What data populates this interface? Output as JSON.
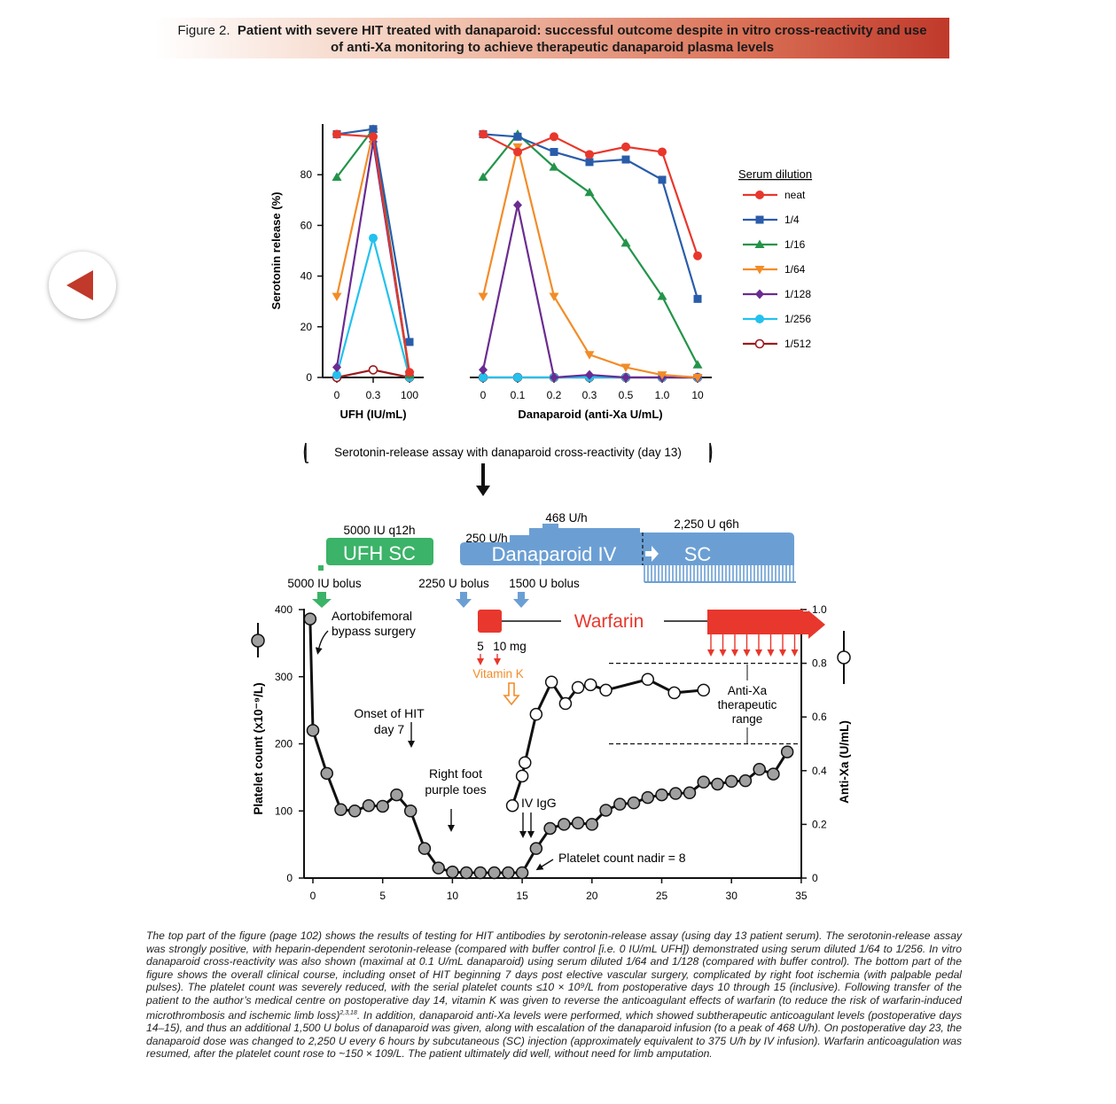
{
  "header": {
    "figure_label": "Figure 2.",
    "title_line1": "Patient with severe HIT treated with danaparoid: successful outcome despite in vitro cross-reactivity and use",
    "title_line2": "of anti-Xa monitoring to achieve therapeutic danaparoid plasma levels"
  },
  "navigation": {
    "back_icon": "left-triangle-icon"
  },
  "colors": {
    "neat": "#e8372c",
    "1/4": "#2a5caa",
    "1/16": "#23944a",
    "1/64": "#f28c28",
    "1/128": "#6a2c91",
    "1/256": "#22c1ee",
    "1/512": "#9b1b1f",
    "ufh": "#3bb368",
    "danaparoid": "#6b9fd4",
    "warfarin": "#e8372c",
    "vitamin_k": "#f28c28",
    "marker_gray": "#a0a0a0"
  },
  "chart_data": [
    {
      "type": "line",
      "ylabel": "Serotonin release (%)",
      "yticks": [
        0,
        20,
        40,
        60,
        80
      ],
      "ylim": [
        0,
        100
      ],
      "legend_title": "Serum dilution",
      "legend_position": "right",
      "panels": [
        {
          "xlabel": "UFH (IU/mL)",
          "categories": [
            "0",
            "0.3",
            "100"
          ]
        },
        {
          "xlabel": "Danaparoid (anti-Xa U/mL)",
          "categories": [
            "0",
            "0.1",
            "0.2",
            "0.3",
            "0.5",
            "1.0",
            "10"
          ]
        }
      ],
      "series": [
        {
          "name": "neat",
          "marker": "circle",
          "ufh": [
            96,
            95,
            2
          ],
          "danaparoid": [
            96,
            89,
            95,
            88,
            91,
            89,
            48
          ]
        },
        {
          "name": "1/4",
          "marker": "square",
          "ufh": [
            96,
            98,
            14
          ],
          "danaparoid": [
            96,
            95,
            89,
            85,
            86,
            78,
            31
          ]
        },
        {
          "name": "1/16",
          "marker": "triangle-up",
          "ufh": [
            79,
            98,
            1
          ],
          "danaparoid": [
            79,
            96,
            83,
            73,
            53,
            32,
            5
          ]
        },
        {
          "name": "1/64",
          "marker": "triangle-down",
          "ufh": [
            32,
            97,
            1
          ],
          "danaparoid": [
            32,
            91,
            32,
            9,
            4,
            1,
            0
          ]
        },
        {
          "name": "1/128",
          "marker": "diamond",
          "ufh": [
            4,
            93,
            1
          ],
          "danaparoid": [
            3,
            68,
            0,
            1,
            0,
            0,
            0
          ]
        },
        {
          "name": "1/256",
          "marker": "circle",
          "ufh": [
            1,
            55,
            0
          ],
          "danaparoid": [
            0,
            0,
            0,
            0,
            0,
            0,
            0
          ]
        },
        {
          "name": "1/512",
          "marker": "open-circle",
          "ufh": [
            0,
            3,
            0
          ],
          "danaparoid": [
            0,
            0,
            0,
            0,
            0,
            0,
            0
          ]
        }
      ]
    },
    {
      "type": "line",
      "xlabel": "",
      "xticks": [
        0,
        5,
        10,
        15,
        20,
        25,
        30,
        35
      ],
      "xlim": [
        -0.6,
        35
      ],
      "ylabel_left": "Platelet count (x10⁻⁹/L)",
      "yticks_left": [
        0,
        100,
        200,
        300,
        400
      ],
      "ylim_left": [
        0,
        400
      ],
      "ylabel_right": "Anti-Xa (U/mL)",
      "yticks_right": [
        "0",
        "0.2",
        "0.4",
        "0.6",
        "0.8",
        "1.0"
      ],
      "ylim_right": [
        0,
        1.0
      ],
      "platelet_count": {
        "x": [
          -0.2,
          0,
          1,
          2,
          3,
          4,
          5,
          6,
          7,
          8,
          9,
          10,
          11,
          12,
          13,
          14,
          15,
          16,
          17,
          18,
          19,
          20,
          21,
          22,
          23,
          24,
          25,
          26,
          27,
          28,
          29,
          30,
          31,
          32,
          33,
          34
        ],
        "y": [
          386,
          220,
          156,
          102,
          100,
          108,
          107,
          124,
          100,
          44,
          15,
          9,
          8,
          8,
          8,
          8,
          8,
          44,
          74,
          80,
          82,
          80,
          101,
          110,
          112,
          120,
          124,
          126,
          127,
          143,
          140,
          144,
          145,
          162,
          155,
          188
        ]
      },
      "anti_xa": {
        "x": [
          14.3,
          15.0,
          15.2,
          16.0,
          17.1,
          18.1,
          19.0,
          19.9,
          21.0,
          24.0,
          25.9,
          28.0
        ],
        "y": [
          0.27,
          0.38,
          0.43,
          0.61,
          0.73,
          0.65,
          0.71,
          0.72,
          0.7,
          0.74,
          0.69,
          0.7
        ]
      },
      "anti_xa_range": [
        0.5,
        0.8
      ],
      "treatments": {
        "ufh_label": "UFH SC",
        "ufh_dose": "5000 IU q12h",
        "ufh_bolus": "5000 IU bolus",
        "danaparoid_label": "Danaparoid  IV",
        "danaparoid_sc": "SC",
        "dose_250": "250 U/h",
        "dose_468": "468 U/h",
        "dose_2250": "2,250 U q6h",
        "bolus_2250": "2250 U bolus",
        "bolus_1500": "1500 U bolus",
        "warfarin_label": "Warfarin",
        "warfarin_dose_5": "5",
        "warfarin_dose_10": "10 mg",
        "vitamin_k": "Vitamin K"
      },
      "annotations": {
        "surgery": [
          "Aortobifemoral",
          "bypass surgery"
        ],
        "hit_onset": [
          "Onset of HIT",
          "day 7"
        ],
        "toes": [
          "Right foot",
          "purple toes"
        ],
        "ivig": "IV IgG",
        "nadir": "Platelet count nadir = 8",
        "range": [
          "Anti-Xa",
          "therapeutic",
          "range"
        ],
        "bracket": "Serotonin-release assay with danaparoid cross-reactivity (day 13)"
      }
    }
  ],
  "caption": {
    "p1": "The top part of the figure (page 102) shows the results of testing for HIT antibodies by serotonin-release assay (using day 13 patient serum). The serotonin-release assay was strongly positive, with heparin-dependent serotonin-release (compared with buffer control [i.e. 0 IU/mL UFH]) demonstrated using serum diluted 1/64 to 1/256. In vitro danaparoid cross-reactivity was also shown (maximal at 0.1 U/mL danaparoid) using serum diluted 1/64 and 1/128 (compared with buffer control). The bottom part of the figure shows the overall clinical course, including onset of HIT beginning 7 days post elective vascular surgery, complicated by right foot ischemia (with palpable pedal pulses). The platelet count was severely reduced, with the serial platelet counts ≤10 × 10⁹/L from postoperative days 10 through 15 (inclusive). Following transfer of the patient to the author’s medical centre on postoperative day 14, vitamin K was given to reverse the anticoagulant effects of warfarin (to reduce the risk of warfarin-induced microthrombosis and ischemic limb loss)",
    "refs": "2,3,18",
    "p2": ". In addition, danaparoid anti-Xa levels were performed, which showed subtherapeutic anticoagulant levels (postoperative days 14–15), and thus an additional 1,500 U bolus of danaparoid was given, along with escalation of the danaparoid infusion (to a peak of 468 U/h). On postoperative day 23, the danaparoid dose was changed to 2,250 U every 6 hours by subcutaneous (SC) injection (approximately equivalent to 375 U/h by IV infusion). Warfarin anticoagulation was resumed, after the platelet count rose to ~150 × 109/L. The patient ultimately did well, without need for limb amputation."
  }
}
